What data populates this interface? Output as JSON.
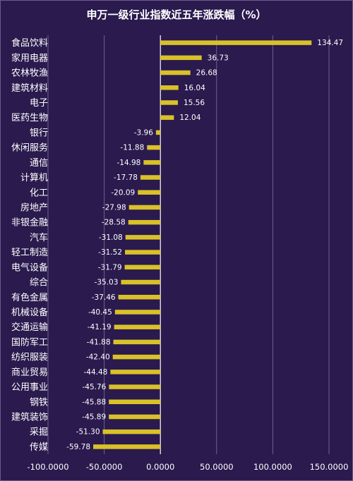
{
  "chart_data": {
    "type": "bar",
    "orientation": "horizontal",
    "title": "申万一级行业指数近五年涨跌幅（%）",
    "categories": [
      "食品饮料",
      "家用电器",
      "农林牧渔",
      "建筑材料",
      "电子",
      "医药生物",
      "银行",
      "休闲服务",
      "通信",
      "计算机",
      "化工",
      "房地产",
      "非银金融",
      "汽车",
      "轻工制造",
      "电气设备",
      "综合",
      "有色金属",
      "机械设备",
      "交通运输",
      "国防军工",
      "纺织服装",
      "商业贸易",
      "公用事业",
      "钢铁",
      "建筑装饰",
      "采掘",
      "传媒"
    ],
    "values": [
      134.47,
      36.73,
      26.68,
      16.04,
      15.56,
      12.04,
      -3.96,
      -11.88,
      -14.98,
      -17.78,
      -20.09,
      -27.98,
      -28.58,
      -31.08,
      -31.52,
      -31.79,
      -35.03,
      -37.46,
      -40.45,
      -41.19,
      -41.88,
      -42.4,
      -44.48,
      -45.76,
      -45.88,
      -45.89,
      -51.3,
      -59.78
    ],
    "value_labels": [
      "134.47",
      "36.73",
      "26.68",
      "16.04",
      "15.56",
      "12.04",
      "-3.96",
      "-11.88",
      "-14.98",
      "-17.78",
      "-20.09",
      "-27.98",
      "-28.58",
      "-31.08",
      "-31.52",
      "-31.79",
      "-35.03",
      "-37.46",
      "-40.45",
      "-41.19",
      "-41.88",
      "-42.40",
      "-44.48",
      "-45.76",
      "-45.88",
      "-45.89",
      "-51.30",
      "-59.78"
    ],
    "xlim": [
      -100,
      150
    ],
    "x_ticks": [
      -100,
      -50,
      0,
      50,
      100,
      150
    ],
    "x_tick_labels": [
      "-100.0000",
      "-50.0000",
      "0.0000",
      "50.0000",
      "100.0000",
      "150.0000"
    ],
    "grid": "vertical",
    "legend": "none",
    "colors": {
      "bar": "#d9c12a",
      "background": "#2a1a4e",
      "grid": "#6e6390",
      "text": "#ffffff"
    }
  }
}
